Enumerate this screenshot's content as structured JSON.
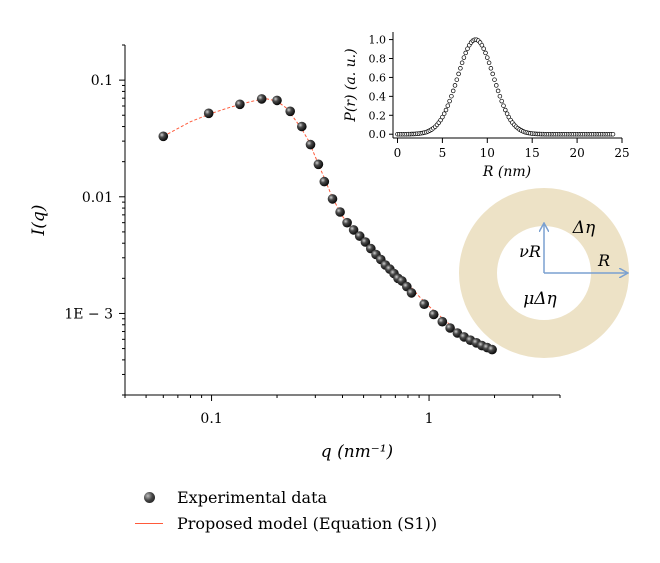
{
  "chart_data": [
    {
      "type": "scatter",
      "x_scale": "log",
      "y_scale": "log",
      "xlim": [
        0.04,
        4
      ],
      "ylim": [
        0.0002,
        0.2
      ],
      "xlabel": "q (nm⁻¹)",
      "ylabel": "I(q)",
      "x_ticks": [
        {
          "v": 0.1,
          "label": "0.1"
        },
        {
          "v": 1,
          "label": "1"
        }
      ],
      "y_ticks": [
        {
          "v": 0.1,
          "label": "0.1"
        },
        {
          "v": 0.01,
          "label": "0.01"
        },
        {
          "v": 0.001,
          "label": "1E − 3"
        }
      ],
      "series": [
        {
          "name": "Experimental data",
          "marker": "ball",
          "x": [
            0.06,
            0.097,
            0.135,
            0.17,
            0.2,
            0.23,
            0.26,
            0.285,
            0.31,
            0.33,
            0.36,
            0.39,
            0.42,
            0.45,
            0.48,
            0.51,
            0.54,
            0.57,
            0.6,
            0.63,
            0.66,
            0.69,
            0.72,
            0.75,
            0.79,
            0.83,
            0.95,
            1.05,
            1.15,
            1.25,
            1.35,
            1.45,
            1.55,
            1.65,
            1.75,
            1.85,
            1.95
          ],
          "y": [
            0.033,
            0.052,
            0.062,
            0.069,
            0.067,
            0.054,
            0.04,
            0.028,
            0.019,
            0.0135,
            0.0096,
            0.0074,
            0.006,
            0.0052,
            0.0046,
            0.0041,
            0.0036,
            0.0032,
            0.0029,
            0.0026,
            0.0024,
            0.0022,
            0.002,
            0.0019,
            0.0017,
            0.0015,
            0.0012,
            0.00098,
            0.00085,
            0.00075,
            0.00068,
            0.00063,
            0.00059,
            0.00056,
            0.00053,
            0.00051,
            0.00049
          ]
        },
        {
          "name": "Proposed model (Equation (S1))",
          "type": "line",
          "color": "#ff5a3a",
          "x": [
            0.06,
            0.08,
            0.1,
            0.12,
            0.14,
            0.16,
            0.18,
            0.2,
            0.22,
            0.24,
            0.26,
            0.28,
            0.3,
            0.33,
            0.36,
            0.4,
            0.45,
            0.5,
            0.6,
            0.7,
            0.8,
            0.9,
            1.0,
            1.2,
            1.4,
            1.6,
            1.8,
            1.95
          ],
          "y": [
            0.033,
            0.044,
            0.052,
            0.058,
            0.063,
            0.067,
            0.069,
            0.066,
            0.058,
            0.047,
            0.038,
            0.03,
            0.022,
            0.0145,
            0.0098,
            0.0068,
            0.0052,
            0.0042,
            0.003,
            0.0022,
            0.0018,
            0.0014,
            0.00115,
            0.00085,
            0.00068,
            0.00059,
            0.00052,
            0.00049
          ]
        }
      ],
      "legend": "bottom-left, below plot"
    },
    {
      "type": "scatter",
      "xlim": [
        -0.5,
        25
      ],
      "ylim": [
        -0.04,
        1.08
      ],
      "xlabel": "R (nm)",
      "ylabel": "P(r) (a. u.)",
      "x_ticks": [
        0,
        5,
        10,
        15,
        20,
        25
      ],
      "y_ticks": [
        0.0,
        0.2,
        0.4,
        0.6,
        0.8,
        1.0
      ],
      "y_tick_labels": [
        "0.0",
        "0.2",
        "0.4",
        "0.6",
        "0.8",
        "1.0"
      ],
      "series": [
        {
          "marker": "open-circle",
          "function": "gaussian",
          "center": 8.7,
          "sigma": 2.0,
          "x_range": [
            0,
            24
          ],
          "x_step": 0.2
        }
      ]
    }
  ],
  "diagram": {
    "outer_label": "Δη",
    "inner_label": "μΔη",
    "radius_label": "R",
    "inner_radius_label": "νR",
    "ring_color": "#ede2c6",
    "arrow_color": "#7aa0d0"
  }
}
